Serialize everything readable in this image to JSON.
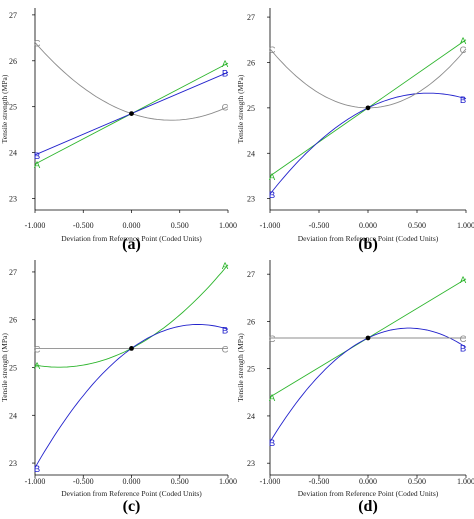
{
  "colors": {
    "A": "#2db52d",
    "B": "#2222cc",
    "C": "#8c8c8c",
    "axis": "#000000",
    "ref_point": "#000000"
  },
  "chart_data": [
    {
      "type": "line",
      "panel_label": "(a)",
      "xlabel": "Deviation from Reference Point (Coded Units)",
      "ylabel": "Tensile strength (MPa)",
      "xlim": [
        -1,
        1
      ],
      "ylim": [
        22.75,
        27.15
      ],
      "xticks": [
        "-1.000",
        "-0.500",
        "0.000",
        "0.500",
        "1.000"
      ],
      "yticks": [
        "23",
        "24",
        "25",
        "26",
        "27"
      ],
      "ref_point": [
        0,
        24.85
      ],
      "series": [
        {
          "name": "A",
          "x": [
            -1,
            1
          ],
          "y": [
            23.75,
            25.95
          ],
          "curve": "line"
        },
        {
          "name": "B",
          "x": [
            -1,
            1
          ],
          "y": [
            23.95,
            25.75
          ],
          "curve": "line"
        },
        {
          "name": "C",
          "x": [
            -1,
            0,
            1
          ],
          "y": [
            26.4,
            24.85,
            25.0
          ],
          "curve": "quadratic"
        }
      ]
    },
    {
      "type": "line",
      "panel_label": "(b)",
      "xlabel": "Deviation from Reference Point (Coded Units)",
      "ylabel": "Tensile strength (MPa)",
      "xlim": [
        -1,
        1
      ],
      "ylim": [
        22.75,
        27.2
      ],
      "xticks": [
        "-1.000",
        "-0.500",
        "0.000",
        "0.500",
        "1.000"
      ],
      "yticks": [
        "23",
        "24",
        "25",
        "26",
        "27"
      ],
      "ref_point": [
        0,
        25.0
      ],
      "series": [
        {
          "name": "A",
          "x": [
            -1,
            1
          ],
          "y": [
            23.5,
            26.5
          ],
          "curve": "line"
        },
        {
          "name": "B",
          "x": [
            -1,
            0,
            1
          ],
          "y": [
            23.1,
            25.0,
            25.2
          ],
          "curve": "quadratic"
        },
        {
          "name": "C",
          "x": [
            -1,
            0,
            1
          ],
          "y": [
            26.3,
            25.0,
            26.3
          ],
          "curve": "quadratic"
        }
      ]
    },
    {
      "type": "line",
      "panel_label": "(c)",
      "xlabel": "Deviation from Reference Point (Coded Units)",
      "ylabel": "Tensile strength (MPa)",
      "xlim": [
        -1,
        1
      ],
      "ylim": [
        22.75,
        27.25
      ],
      "xticks": [
        "-1.000",
        "-0.500",
        "0.000",
        "0.500",
        "1.000"
      ],
      "yticks": [
        "23",
        "24",
        "25",
        "26",
        "27"
      ],
      "ref_point": [
        0,
        25.4
      ],
      "series": [
        {
          "name": "A",
          "x": [
            -1,
            0,
            1
          ],
          "y": [
            25.05,
            25.4,
            27.15
          ],
          "curve": "quadratic"
        },
        {
          "name": "B",
          "x": [
            -1,
            0,
            1
          ],
          "y": [
            22.9,
            25.4,
            25.8
          ],
          "curve": "quadratic"
        },
        {
          "name": "C",
          "x": [
            -1,
            1
          ],
          "y": [
            25.4,
            25.4
          ],
          "curve": "line"
        }
      ]
    },
    {
      "type": "line",
      "panel_label": "(d)",
      "xlabel": "Deviation from Reference Point (Coded Units)",
      "ylabel": "Tensile strength (MPa)",
      "xlim": [
        -1,
        1
      ],
      "ylim": [
        22.75,
        27.3
      ],
      "xticks": [
        "-1.000",
        "-0.500",
        "0.000",
        "0.500",
        "1.000"
      ],
      "yticks": [
        "23",
        "24",
        "25",
        "26",
        "27"
      ],
      "ref_point": [
        0,
        25.65
      ],
      "series": [
        {
          "name": "A",
          "x": [
            -1,
            1
          ],
          "y": [
            24.4,
            26.9
          ],
          "curve": "line"
        },
        {
          "name": "B",
          "x": [
            -1,
            0,
            1
          ],
          "y": [
            23.45,
            25.65,
            25.45
          ],
          "curve": "quadratic"
        },
        {
          "name": "C",
          "x": [
            -1,
            1
          ],
          "y": [
            25.65,
            25.65
          ],
          "curve": "line"
        }
      ]
    }
  ]
}
